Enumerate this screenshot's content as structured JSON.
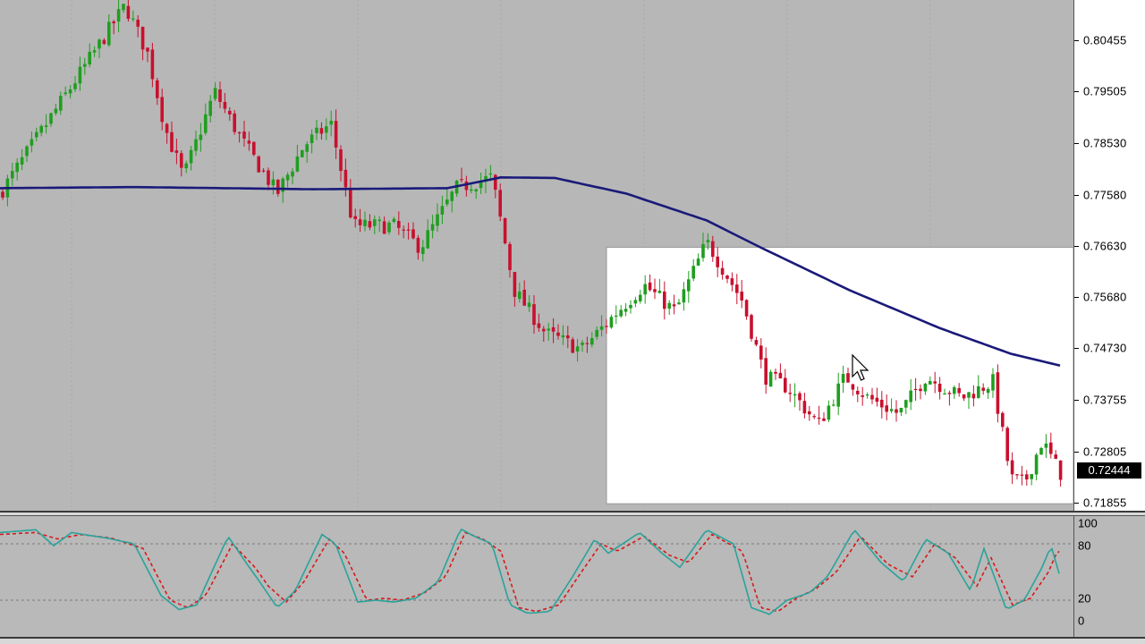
{
  "price_axis": {
    "labels": [
      "0.80455",
      "0.79505",
      "0.78530",
      "0.77580",
      "0.76630",
      "0.75680",
      "0.74730",
      "0.73755",
      "0.72805",
      "0.71855"
    ],
    "values": [
      0.80455,
      0.79505,
      0.7853,
      0.7758,
      0.7663,
      0.7568,
      0.7473,
      0.73755,
      0.72805,
      0.71855
    ],
    "current": "0.72444",
    "current_value": 0.72444
  },
  "oscillator_axis": {
    "labels": [
      "100",
      "80",
      "20",
      "0"
    ],
    "values": [
      100,
      80,
      20,
      0
    ]
  },
  "colors": {
    "background": "#b7b7b7",
    "bull_candle": "#1f9e1f",
    "bear_candle": "#c8102e",
    "moving_average": "#1a1a7a",
    "osc_main": "#2aa39a",
    "osc_signal": "#d61a1a",
    "highlight_box": "#ffffff"
  },
  "chart_data": {
    "type": "candlestick",
    "ylim": [
      0.717,
      0.812
    ],
    "candle_series": "synthetic reconstruction following visible price path",
    "price_path": [
      [
        0,
        0.776
      ],
      [
        40,
        0.786
      ],
      [
        80,
        0.796
      ],
      [
        140,
        0.811
      ],
      [
        165,
        0.802
      ],
      [
        185,
        0.788
      ],
      [
        205,
        0.779
      ],
      [
        240,
        0.795
      ],
      [
        270,
        0.786
      ],
      [
        310,
        0.776
      ],
      [
        340,
        0.785
      ],
      [
        370,
        0.789
      ],
      [
        395,
        0.77
      ],
      [
        440,
        0.77
      ],
      [
        470,
        0.766
      ],
      [
        510,
        0.777
      ],
      [
        550,
        0.779
      ],
      [
        575,
        0.758
      ],
      [
        610,
        0.75
      ],
      [
        650,
        0.747
      ],
      [
        690,
        0.754
      ],
      [
        720,
        0.759
      ],
      [
        755,
        0.754
      ],
      [
        790,
        0.767
      ],
      [
        830,
        0.756
      ],
      [
        855,
        0.742
      ],
      [
        880,
        0.74
      ],
      [
        915,
        0.733
      ],
      [
        945,
        0.742
      ],
      [
        970,
        0.738
      ],
      [
        1005,
        0.735
      ],
      [
        1035,
        0.742
      ],
      [
        1075,
        0.738
      ],
      [
        1110,
        0.741
      ],
      [
        1130,
        0.723
      ],
      [
        1145,
        0.722
      ],
      [
        1165,
        0.73
      ],
      [
        1185,
        0.724
      ]
    ],
    "moving_average": [
      [
        0,
        0.777
      ],
      [
        150,
        0.7772
      ],
      [
        350,
        0.7768
      ],
      [
        500,
        0.777
      ],
      [
        560,
        0.779
      ],
      [
        620,
        0.7789
      ],
      [
        700,
        0.776
      ],
      [
        790,
        0.771
      ],
      [
        850,
        0.766
      ],
      [
        950,
        0.758
      ],
      [
        1050,
        0.751
      ],
      [
        1130,
        0.7462
      ],
      [
        1185,
        0.744
      ]
    ],
    "highlight_box": {
      "x_from": 678,
      "x_to": 1200,
      "y_top": 0.766,
      "y_bottom": 0.7183
    },
    "oscillator": {
      "ylim": [
        0,
        100
      ],
      "levels": [
        80,
        20
      ],
      "main_path": [
        [
          0,
          92
        ],
        [
          40,
          95
        ],
        [
          60,
          78
        ],
        [
          80,
          92
        ],
        [
          120,
          86
        ],
        [
          150,
          80
        ],
        [
          180,
          25
        ],
        [
          200,
          10
        ],
        [
          220,
          15
        ],
        [
          255,
          88
        ],
        [
          275,
          60
        ],
        [
          290,
          40
        ],
        [
          310,
          12
        ],
        [
          330,
          30
        ],
        [
          360,
          90
        ],
        [
          375,
          80
        ],
        [
          400,
          18
        ],
        [
          420,
          20
        ],
        [
          440,
          18
        ],
        [
          465,
          22
        ],
        [
          490,
          40
        ],
        [
          515,
          96
        ],
        [
          530,
          88
        ],
        [
          550,
          80
        ],
        [
          570,
          15
        ],
        [
          590,
          6
        ],
        [
          615,
          8
        ],
        [
          640,
          45
        ],
        [
          665,
          85
        ],
        [
          680,
          70
        ],
        [
          715,
          92
        ],
        [
          740,
          70
        ],
        [
          760,
          55
        ],
        [
          790,
          95
        ],
        [
          820,
          80
        ],
        [
          840,
          12
        ],
        [
          860,
          5
        ],
        [
          880,
          20
        ],
        [
          905,
          28
        ],
        [
          925,
          45
        ],
        [
          955,
          95
        ],
        [
          985,
          60
        ],
        [
          1010,
          40
        ],
        [
          1035,
          85
        ],
        [
          1060,
          70
        ],
        [
          1085,
          30
        ],
        [
          1100,
          75
        ],
        [
          1125,
          10
        ],
        [
          1145,
          20
        ],
        [
          1165,
          55
        ],
        [
          1175,
          78
        ],
        [
          1185,
          45
        ]
      ],
      "signal_path": [
        [
          0,
          90
        ],
        [
          40,
          92
        ],
        [
          65,
          85
        ],
        [
          90,
          90
        ],
        [
          125,
          86
        ],
        [
          160,
          75
        ],
        [
          190,
          20
        ],
        [
          210,
          12
        ],
        [
          230,
          25
        ],
        [
          260,
          80
        ],
        [
          285,
          55
        ],
        [
          300,
          35
        ],
        [
          320,
          18
        ],
        [
          340,
          40
        ],
        [
          368,
          85
        ],
        [
          385,
          70
        ],
        [
          410,
          20
        ],
        [
          430,
          22
        ],
        [
          450,
          20
        ],
        [
          475,
          28
        ],
        [
          498,
          45
        ],
        [
          520,
          92
        ],
        [
          540,
          85
        ],
        [
          560,
          72
        ],
        [
          580,
          12
        ],
        [
          600,
          8
        ],
        [
          625,
          15
        ],
        [
          650,
          50
        ],
        [
          672,
          80
        ],
        [
          690,
          72
        ],
        [
          720,
          88
        ],
        [
          748,
          68
        ],
        [
          770,
          60
        ],
        [
          796,
          90
        ],
        [
          830,
          72
        ],
        [
          850,
          12
        ],
        [
          870,
          8
        ],
        [
          890,
          22
        ],
        [
          912,
          32
        ],
        [
          935,
          50
        ],
        [
          962,
          88
        ],
        [
          993,
          58
        ],
        [
          1020,
          45
        ],
        [
          1045,
          80
        ],
        [
          1068,
          65
        ],
        [
          1092,
          35
        ],
        [
          1108,
          65
        ],
        [
          1132,
          15
        ],
        [
          1152,
          22
        ],
        [
          1172,
          50
        ],
        [
          1182,
          72
        ]
      ]
    }
  }
}
